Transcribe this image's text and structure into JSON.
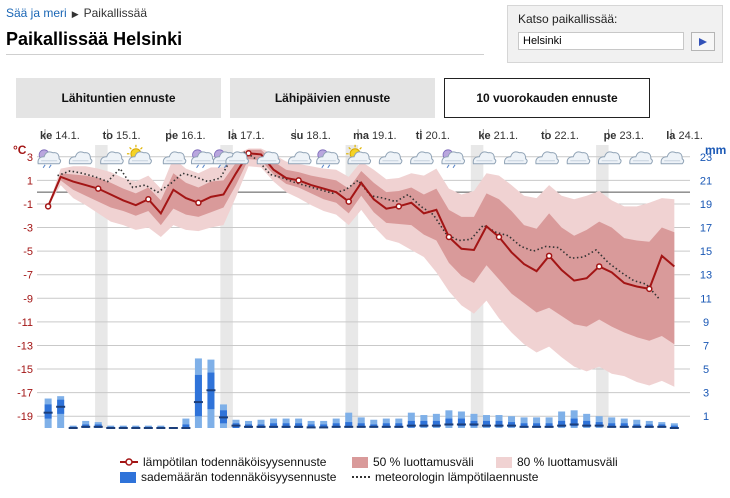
{
  "breadcrumb": {
    "home": "Sää ja meri",
    "current": "Paikallissää"
  },
  "page_title": "Paikallissää Helsinki",
  "location_search": {
    "label": "Katso paikallissää:",
    "value": "Helsinki"
  },
  "tabs": [
    {
      "label": "Lähituntien ennuste",
      "active": false
    },
    {
      "label": "Lähipäivien ennuste",
      "active": false
    },
    {
      "label": "10 vuorokauden ennuste",
      "active": true
    }
  ],
  "legend": {
    "temp": "lämpötilan todennäköisyysennuste",
    "conf50": "50 % luottamusväli",
    "conf80": "80 % luottamusväli",
    "precip": "sademäärän todennäköisyysennuste",
    "meteorologist": "meteorologin lämpötilaennuste"
  },
  "colors": {
    "temp_line": "#a31515",
    "conf50": "#d99a9a",
    "conf80": "#f0d2d2",
    "precip_light": "#7fb0e8",
    "precip_mid": "#2f73d9",
    "precip_dark": "#1b3e7a",
    "axis_left": "#a31515",
    "axis_right": "#1a58b5",
    "day_shade": "#e8e8e8"
  },
  "chart_data": {
    "type": "line",
    "left_unit": "°C",
    "right_unit": "mm",
    "left_axis": {
      "min": -20,
      "max": 4,
      "ticks": [
        3,
        1,
        -1,
        -3,
        -5,
        -7,
        -9,
        -11,
        -13,
        -15,
        -17,
        -19
      ]
    },
    "right_axis": {
      "min": 0,
      "max": 24,
      "ticks": [
        23,
        21,
        19,
        17,
        15,
        13,
        11,
        9,
        7,
        5,
        3,
        1
      ]
    },
    "days": [
      "ke 14.1.",
      "to 15.1.",
      "pe 16.1.",
      "la 17.1.",
      "su 18.1.",
      "ma 19.1.",
      "ti 20.1.",
      "ke 21.1.",
      "to 22.1.",
      "pe 23.1.",
      "la 24.1."
    ],
    "day_positions": [
      0,
      1,
      2,
      3,
      4,
      5,
      6,
      7,
      8,
      9,
      10
    ],
    "shaded_days": [
      [
        0.8,
        1.0
      ],
      [
        2.8,
        3.0
      ],
      [
        4.8,
        5.0
      ],
      [
        6.8,
        7.0
      ],
      [
        8.8,
        9.0
      ]
    ],
    "x_max": 10.3,
    "temperature": {
      "x": [
        0.05,
        0.25,
        0.45,
        0.65,
        0.85,
        1.05,
        1.25,
        1.45,
        1.65,
        1.85,
        2.05,
        2.25,
        2.45,
        2.65,
        2.85,
        3.05,
        3.25,
        3.45,
        3.65,
        3.85,
        4.05,
        4.25,
        4.45,
        4.65,
        4.85,
        5.05,
        5.25,
        5.45,
        5.65,
        5.85,
        6.05,
        6.25,
        6.45,
        6.65,
        6.85,
        7.05,
        7.25,
        7.45,
        7.65,
        7.85,
        8.05,
        8.25,
        8.45,
        8.65,
        8.85,
        9.05,
        9.25,
        9.45,
        9.65,
        9.85,
        10.05
      ],
      "median": [
        -1.2,
        1.3,
        0.9,
        0.6,
        0.3,
        -0.2,
        -0.7,
        -1.1,
        -0.6,
        -1.8,
        0.2,
        -0.5,
        -0.9,
        -0.4,
        -0.2,
        1.6,
        3.3,
        3.2,
        1.9,
        1.2,
        1.0,
        0.6,
        0.3,
        0.0,
        -0.8,
        0.8,
        -0.6,
        -1.4,
        -1.2,
        -0.9,
        -1.8,
        -1.5,
        -3.8,
        -4.8,
        -4.9,
        -2.9,
        -3.8,
        -5.1,
        -6.1,
        -6.7,
        -5.4,
        -6.6,
        -7.5,
        -7.3,
        -6.3,
        -6.8,
        -7.7,
        -8.0,
        -8.2,
        -5.4,
        -6.3
      ],
      "conf50_low": [
        -1.2,
        1.0,
        0.2,
        -0.3,
        -0.8,
        -1.3,
        -1.6,
        -2.0,
        -1.6,
        -2.8,
        -1.4,
        -1.9,
        -2.1,
        -1.7,
        -1.3,
        0.6,
        2.8,
        2.7,
        1.5,
        0.7,
        0.4,
        -0.1,
        -0.6,
        -0.9,
        -1.8,
        -0.3,
        -1.7,
        -2.6,
        -2.7,
        -2.8,
        -3.6,
        -4.1,
        -6.0,
        -7.1,
        -7.7,
        -6.2,
        -7.4,
        -8.6,
        -9.4,
        -10.2,
        -9.8,
        -10.5,
        -11.2,
        -11.4,
        -10.8,
        -11.4,
        -11.9,
        -12.3,
        -12.6,
        -12.2,
        -12.9
      ],
      "conf50_high": [
        -1.2,
        1.6,
        1.5,
        1.4,
        1.2,
        0.8,
        0.3,
        -0.1,
        0.4,
        -0.7,
        1.6,
        0.8,
        0.4,
        0.9,
        1.0,
        2.5,
        3.6,
        3.6,
        2.6,
        1.9,
        1.7,
        1.4,
        1.2,
        1.0,
        0.3,
        1.8,
        0.8,
        0.0,
        0.1,
        0.4,
        -0.2,
        0.3,
        -1.5,
        -2.1,
        -2.1,
        -0.1,
        -0.6,
        -1.6,
        -2.8,
        -3.1,
        -1.8,
        -3.0,
        -3.7,
        -3.2,
        -2.5,
        -3.0,
        -3.9,
        -4.1,
        -4.2,
        -3.0,
        -3.4
      ],
      "conf80_low": [
        -1.2,
        0.6,
        -0.5,
        -1.1,
        -1.8,
        -2.5,
        -2.8,
        -3.2,
        -3.0,
        -3.8,
        -2.8,
        -3.2,
        -3.3,
        -3.0,
        -2.8,
        -0.4,
        2.2,
        2.1,
        0.9,
        0.0,
        -0.5,
        -1.1,
        -1.6,
        -1.9,
        -2.8,
        -1.5,
        -2.9,
        -4.0,
        -4.3,
        -4.9,
        -5.5,
        -6.8,
        -8.4,
        -9.6,
        -10.3,
        -9.2,
        -10.7,
        -11.9,
        -12.9,
        -13.6,
        -13.1,
        -14.0,
        -14.8,
        -15.2,
        -14.8,
        -15.4,
        -15.6,
        -16.1,
        -16.4,
        -16.0,
        -16.5
      ],
      "conf80_high": [
        -1.2,
        2.0,
        2.2,
        2.2,
        2.0,
        1.7,
        1.2,
        0.9,
        1.4,
        0.3,
        2.9,
        2.0,
        1.6,
        2.1,
        2.1,
        3.2,
        3.7,
        3.7,
        3.2,
        2.6,
        2.4,
        2.2,
        2.0,
        1.9,
        1.3,
        2.6,
        1.9,
        1.1,
        1.2,
        1.6,
        1.4,
        2.0,
        0.3,
        -0.2,
        0.1,
        1.6,
        1.4,
        0.6,
        -0.3,
        -0.5,
        0.6,
        -0.3,
        -0.6,
        -0.3,
        0.1,
        -0.7,
        -1.2,
        -1.2,
        -0.9,
        -0.5,
        -0.6
      ]
    },
    "meteorologist_temperature": {
      "x": [
        0.2,
        0.4,
        0.6,
        0.8,
        1.0,
        1.2,
        1.4,
        1.6,
        1.8,
        2.0,
        2.2,
        2.4,
        2.6,
        2.8,
        3.0,
        3.2,
        3.4,
        3.6,
        3.8,
        4.0,
        4.2,
        4.4,
        4.6,
        4.8,
        5.0,
        5.2,
        5.4,
        5.6,
        5.8,
        6.0,
        6.2,
        6.4,
        6.6,
        6.8,
        7.0,
        7.2,
        7.4,
        7.6,
        7.8,
        8.0,
        8.2,
        8.4,
        8.6,
        8.8,
        9.0,
        9.2,
        9.4,
        9.6,
        9.8
      ],
      "values": [
        1.4,
        1.8,
        1.6,
        1.3,
        0.9,
        2.0,
        0.4,
        0.6,
        0.0,
        0.7,
        1.6,
        1.3,
        0.9,
        1.2,
        3.1,
        3.4,
        2.7,
        1.5,
        1.2,
        0.8,
        0.5,
        0.2,
        -0.1,
        0.2,
        1.0,
        -0.3,
        -0.5,
        -0.8,
        -0.2,
        -1.2,
        -1.9,
        -3.5,
        -4.1,
        -4.0,
        -2.8,
        -3.4,
        -3.7,
        -4.6,
        -5.0,
        -4.6,
        -4.7,
        -5.6,
        -5.5,
        -4.9,
        -6.0,
        -6.8,
        -7.5,
        -7.8,
        -9.0
      ]
    },
    "precipitation": {
      "x": [
        0.05,
        0.25,
        0.45,
        0.65,
        0.85,
        1.05,
        1.25,
        1.45,
        1.65,
        1.85,
        2.05,
        2.25,
        2.45,
        2.65,
        2.85,
        3.05,
        3.25,
        3.45,
        3.65,
        3.85,
        4.05,
        4.25,
        4.45,
        4.65,
        4.85,
        5.05,
        5.25,
        5.45,
        5.65,
        5.85,
        6.05,
        6.25,
        6.45,
        6.65,
        6.85,
        7.05,
        7.25,
        7.45,
        7.65,
        7.85,
        8.05,
        8.25,
        8.45,
        8.65,
        8.85,
        9.05,
        9.25,
        9.45,
        9.65,
        9.85,
        10.05
      ],
      "low": [
        0.3,
        0.5,
        0,
        0,
        0,
        0,
        0,
        0,
        0,
        0,
        0,
        0,
        0.2,
        0.4,
        0.1,
        0,
        0,
        0,
        0,
        0,
        0,
        0,
        0,
        0,
        0,
        0,
        0,
        0,
        0,
        0,
        0,
        0,
        0,
        0,
        0,
        0,
        0,
        0,
        0,
        0,
        0,
        0,
        0,
        0,
        0,
        0,
        0,
        0,
        0,
        0,
        0
      ],
      "p25": [
        0.8,
        1.2,
        0,
        0,
        0,
        0,
        0,
        0,
        0,
        0,
        0,
        0,
        1.0,
        1.6,
        0.4,
        0,
        0,
        0,
        0,
        0,
        0,
        0,
        0,
        0.05,
        0.05,
        0.05,
        0.05,
        0.05,
        0.05,
        0.05,
        0.1,
        0.1,
        0.2,
        0.15,
        0.15,
        0.1,
        0.1,
        0.1,
        0.05,
        0.05,
        0.05,
        0.1,
        0.15,
        0.1,
        0.1,
        0.05,
        0.05,
        0.05,
        0.05,
        0.05,
        0
      ],
      "median": [
        1.3,
        1.8,
        0,
        0.1,
        0.1,
        0,
        0,
        0,
        0,
        0,
        0,
        0,
        2.2,
        3.2,
        0.9,
        0.2,
        0.1,
        0.1,
        0.1,
        0.1,
        0.1,
        0.05,
        0.05,
        0.1,
        0.1,
        0.1,
        0.1,
        0.1,
        0.1,
        0.2,
        0.2,
        0.2,
        0.3,
        0.3,
        0.3,
        0.2,
        0.2,
        0.2,
        0.1,
        0.1,
        0.1,
        0.2,
        0.3,
        0.2,
        0.2,
        0.1,
        0.1,
        0.1,
        0.1,
        0.1,
        0
      ],
      "p75": [
        2.0,
        2.4,
        0.1,
        0.3,
        0.3,
        0.1,
        0.1,
        0.1,
        0.1,
        0.1,
        0,
        0.3,
        4.5,
        4.7,
        1.5,
        0.4,
        0.3,
        0.3,
        0.4,
        0.4,
        0.4,
        0.3,
        0.3,
        0.4,
        0.5,
        0.4,
        0.3,
        0.4,
        0.4,
        0.6,
        0.6,
        0.6,
        0.8,
        0.8,
        0.6,
        0.6,
        0.6,
        0.5,
        0.4,
        0.4,
        0.4,
        0.6,
        0.8,
        0.6,
        0.5,
        0.4,
        0.4,
        0.3,
        0.3,
        0.3,
        0.2
      ],
      "high": [
        2.5,
        2.7,
        0.2,
        0.6,
        0.5,
        0.2,
        0.2,
        0.2,
        0.2,
        0.2,
        0.05,
        0.8,
        5.9,
        5.8,
        2.0,
        0.7,
        0.6,
        0.7,
        0.8,
        0.8,
        0.8,
        0.6,
        0.6,
        0.8,
        1.3,
        0.9,
        0.7,
        0.8,
        0.8,
        1.3,
        1.1,
        1.2,
        1.5,
        1.4,
        1.2,
        1.1,
        1.1,
        1.0,
        0.9,
        0.9,
        0.9,
        1.4,
        1.5,
        1.2,
        1.0,
        0.9,
        0.8,
        0.7,
        0.6,
        0.5,
        0.4
      ]
    },
    "weather_symbols": {
      "x": [
        0.05,
        0.55,
        1.05,
        1.5,
        2.05,
        2.5,
        2.85,
        3.05,
        3.55,
        4.05,
        4.5,
        5.0,
        5.5,
        6.0,
        6.5,
        7.0,
        7.5,
        8.0,
        8.5,
        9.0,
        9.5,
        10.0
      ],
      "kinds": [
        "rain",
        "cloud",
        "cloud",
        "sun-cloud",
        "cloud",
        "rain",
        "rain",
        "cloud",
        "cloud",
        "cloud",
        "rain",
        "sun-cloud",
        "cloud",
        "cloud",
        "rain",
        "cloud",
        "cloud",
        "cloud",
        "cloud",
        "cloud",
        "cloud",
        "cloud"
      ]
    }
  }
}
